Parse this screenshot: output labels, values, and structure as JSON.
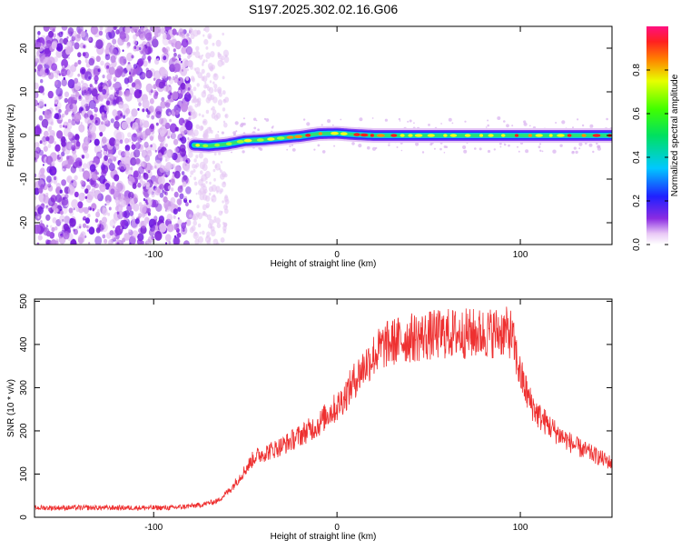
{
  "title": "S197.2025.302.02.16.G06",
  "colors": {
    "snr_line": "#ee3030",
    "axis": "#000000"
  },
  "chart_data": [
    {
      "type": "heatmap",
      "name": "spectrogram",
      "xlabel": "Height of straight line (km)",
      "ylabel": "Frequency (Hz)",
      "xlim": [
        -165,
        150
      ],
      "ylim": [
        -25,
        25
      ],
      "xticks": [
        -100,
        0,
        100
      ],
      "yticks": [
        -20,
        -10,
        0,
        10,
        20
      ],
      "noise_region_x": [
        -165,
        -60
      ],
      "signal_track": {
        "x": [
          -78,
          -70,
          -60,
          -50,
          -40,
          -30,
          -20,
          -10,
          0,
          10,
          20,
          40,
          60,
          80,
          100,
          120,
          150
        ],
        "freq": [
          -2.2,
          -2.4,
          -2.0,
          -1.2,
          -1.0,
          -0.6,
          -0.2,
          0.4,
          0.5,
          0.2,
          0.0,
          0.0,
          0.0,
          0.0,
          0.0,
          0.0,
          0.0
        ]
      },
      "colorbar": {
        "label": "Normalized spectral amplitude",
        "range": [
          0,
          1
        ],
        "ticks": [
          0.0,
          0.2,
          0.4,
          0.6,
          0.8
        ],
        "tick_labels": [
          "0.0",
          "0.2",
          "0.4",
          "0.6",
          "0.8"
        ]
      }
    },
    {
      "type": "line",
      "name": "snr",
      "xlabel": "Height of straight line (km)",
      "ylabel": "SNR (10 * v/v)",
      "xlim": [
        -165,
        150
      ],
      "ylim": [
        0,
        505
      ],
      "xticks": [
        -100,
        0,
        100
      ],
      "yticks": [
        0,
        100,
        200,
        300,
        400,
        500
      ],
      "x": [
        -165,
        -150,
        -130,
        -110,
        -90,
        -75,
        -65,
        -58,
        -50,
        -45,
        -40,
        -30,
        -20,
        -10,
        -5,
        0,
        5,
        10,
        15,
        20,
        25,
        30,
        40,
        50,
        60,
        70,
        80,
        90,
        95,
        100,
        105,
        110,
        120,
        130,
        140,
        150
      ],
      "y": [
        22,
        22,
        22,
        22,
        22,
        28,
        38,
        65,
        110,
        140,
        148,
        165,
        190,
        215,
        240,
        255,
        285,
        320,
        350,
        375,
        395,
        405,
        415,
        420,
        425,
        425,
        425,
        430,
        425,
        330,
        270,
        235,
        195,
        165,
        145,
        125
      ]
    }
  ]
}
